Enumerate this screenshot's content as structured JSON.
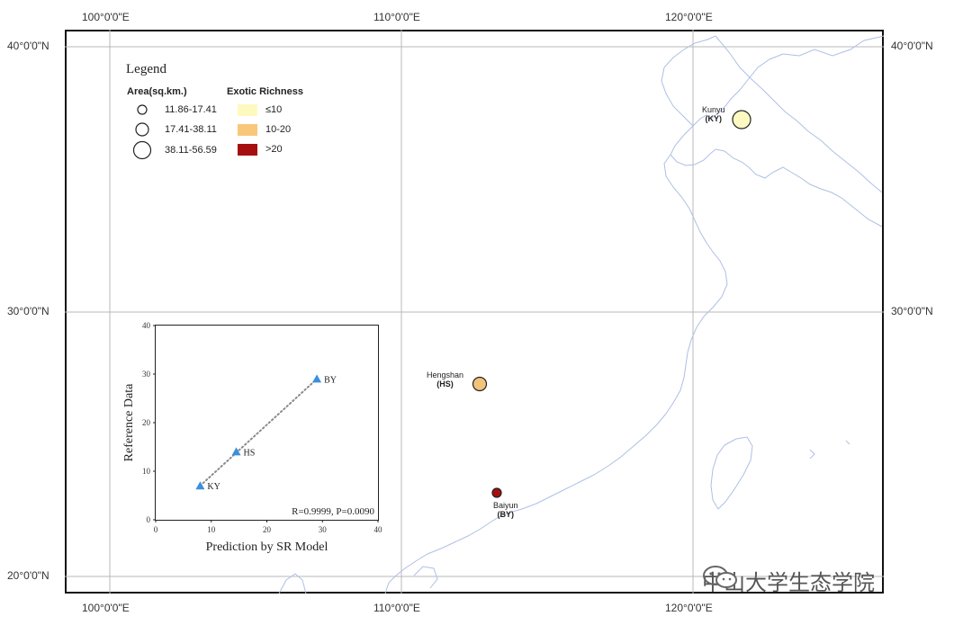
{
  "axes": {
    "top_lon": [
      "100°0'0\"E",
      "110°0'0\"E",
      "120°0'0\"E"
    ],
    "bottom_lon": [
      "100°0'0\"E",
      "110°0'0\"E",
      "120°0'0\"E"
    ],
    "left_lat": [
      "40°0'0\"N",
      "30°0'0\"N",
      "20°0'0\"N"
    ],
    "right_lat": [
      "40°0'0\"N",
      "30°0'0\"N"
    ]
  },
  "legend": {
    "title": "Legend",
    "area_title": "Area(sq.km.)",
    "area_classes": [
      "11.86-17.41",
      "17.41-38.11",
      "38.11-56.59"
    ],
    "richness_title": "Exotic Richness",
    "richness_classes": [
      "≤10",
      "10-20",
      ">20"
    ],
    "richness_colors": [
      "#fef9c0",
      "#f8c77a",
      "#a50f0f"
    ]
  },
  "sites": [
    {
      "name": "Kunyu",
      "code": "(KY)",
      "richness_color": "#fef9c0"
    },
    {
      "name": "Hengshan",
      "code": "(HS)",
      "richness_color": "#f3c37b"
    },
    {
      "name": "Baiyun",
      "code": "(BY)",
      "richness_color": "#a50f0f"
    }
  ],
  "chart_data": {
    "type": "scatter",
    "xlabel": "Prediction by SR Model",
    "ylabel": "Reference Data",
    "xlim": [
      0,
      40
    ],
    "ylim": [
      0,
      40
    ],
    "xticks": [
      0,
      10,
      20,
      30,
      40
    ],
    "yticks": [
      0,
      10,
      20,
      30,
      40
    ],
    "points": [
      {
        "label": "KY",
        "x": 8,
        "y": 7
      },
      {
        "label": "HS",
        "x": 14.5,
        "y": 14
      },
      {
        "label": "BY",
        "x": 29,
        "y": 29
      }
    ],
    "annotation": "R=0.9999, P=0.0090",
    "fit_line": "dotted"
  },
  "watermark": {
    "text": "中山大学生态学院"
  }
}
